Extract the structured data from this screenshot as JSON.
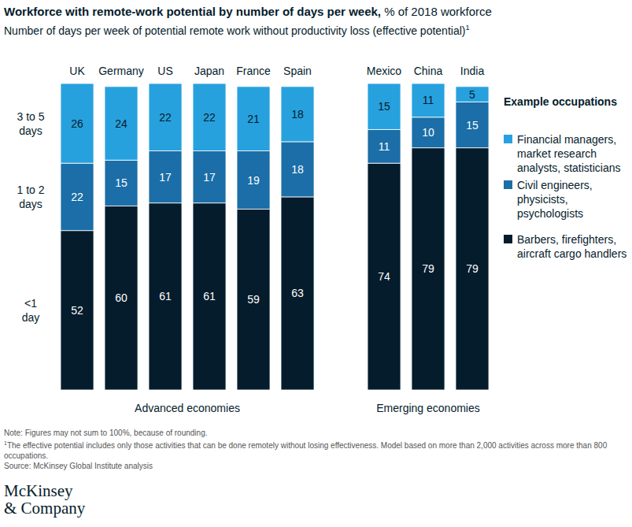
{
  "chart_data": {
    "type": "bar",
    "stacked": true,
    "data_labels": true,
    "tick_labels": false,
    "title": "Workforce with remote-work potential by number of days per week,",
    "title_unit": "% of 2018 workforce",
    "subtitle": "Number of days per week of potential remote work without productivity loss (effective potential)",
    "subtitle_mark": "1",
    "categories": [
      "UK",
      "Germany",
      "US",
      "Japan",
      "France",
      "Spain",
      "Mexico",
      "China",
      "India"
    ],
    "groups": [
      {
        "name": "Advanced economies",
        "categories": [
          "UK",
          "Germany",
          "US",
          "Japan",
          "France",
          "Spain"
        ]
      },
      {
        "name": "Emerging economies",
        "categories": [
          "Mexico",
          "China",
          "India"
        ]
      }
    ],
    "ylim": [
      0,
      100
    ],
    "legend_title": "Example occupations",
    "series": [
      {
        "name": "<1 day",
        "color": "#051c2c",
        "example": "Barbers, firefighters, aircraft cargo handlers",
        "values": [
          52,
          60,
          61,
          61,
          59,
          63,
          74,
          79,
          79
        ]
      },
      {
        "name": "1 to 2 days",
        "color": "#1b6ea7",
        "example": "Civil engineers, physicists, psychologists",
        "values": [
          22,
          15,
          17,
          17,
          19,
          18,
          11,
          10,
          15
        ]
      },
      {
        "name": "3 to 5 days",
        "color": "#27a1de",
        "example": "Financial managers, market research analysts, statisticians",
        "values": [
          26,
          24,
          22,
          22,
          21,
          18,
          15,
          11,
          5
        ]
      }
    ],
    "note": "Note: Figures may not sum to 100%, because of rounding.",
    "footnote_mark": "1",
    "footnote": "The effective potential includes only those activities that can be done remotely without losing effectiveness. Model based on more than 2,000 activities across more than 800 occupations.",
    "source": "Source: McKinsey Global Institute analysis",
    "logo": [
      "McKinsey",
      "& Company"
    ]
  }
}
